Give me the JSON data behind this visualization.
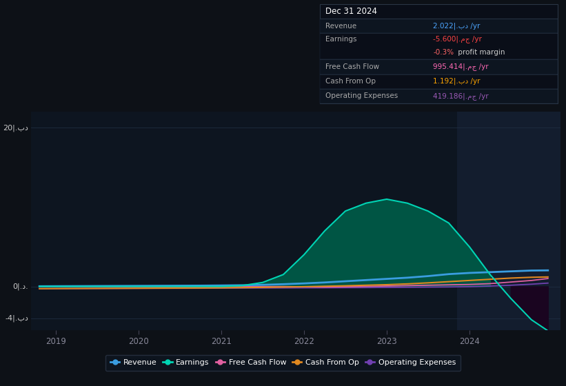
{
  "background_color": "#0d1117",
  "chart_bg_color": "#0d1520",
  "highlight_bg_color": "#131d2e",
  "grid_color": "#1e2d40",
  "title_text": "Dec 31 2024",
  "table_rows": [
    {
      "label": "Revenue",
      "value": "2.022|.بد /yr",
      "color": "#4da6ff",
      "sub": null
    },
    {
      "label": "Earnings",
      "value": "-5.600|.مج /yr",
      "color": "#ff4444",
      "sub": "-0.3% profit margin",
      "sub_color": "#ff6666"
    },
    {
      "label": "Free Cash Flow",
      "value": "995.414|.مج /yr",
      "color": "#ff69b4",
      "sub": null
    },
    {
      "label": "Cash From Op",
      "value": "1.192|.بد /yr",
      "color": "#ffa500",
      "sub": null
    },
    {
      "label": "Operating Expenses",
      "value": "419.186|.مج /yr",
      "color": "#9b59b6",
      "sub": null
    }
  ],
  "years": [
    2018.8,
    2019.0,
    2019.25,
    2019.5,
    2019.75,
    2020.0,
    2020.25,
    2020.5,
    2020.75,
    2021.0,
    2021.25,
    2021.5,
    2021.75,
    2022.0,
    2022.25,
    2022.5,
    2022.75,
    2023.0,
    2023.25,
    2023.5,
    2023.75,
    2024.0,
    2024.25,
    2024.5,
    2024.75,
    2024.95
  ],
  "revenue": [
    0.02,
    0.03,
    0.04,
    0.05,
    0.06,
    0.07,
    0.08,
    0.09,
    0.1,
    0.12,
    0.15,
    0.2,
    0.28,
    0.38,
    0.5,
    0.65,
    0.8,
    0.95,
    1.1,
    1.3,
    1.55,
    1.7,
    1.8,
    1.9,
    2.0,
    2.022
  ],
  "earnings": [
    0.0,
    0.0,
    0.0,
    0.0,
    0.0,
    0.0,
    0.0,
    0.0,
    0.0,
    0.0,
    0.1,
    0.5,
    1.5,
    4.0,
    7.0,
    9.5,
    10.5,
    11.0,
    10.5,
    9.5,
    8.0,
    5.0,
    1.5,
    -1.5,
    -4.2,
    -5.6
  ],
  "free_cash_flow": [
    -0.02,
    -0.02,
    -0.02,
    -0.02,
    -0.02,
    -0.02,
    -0.02,
    -0.02,
    -0.02,
    -0.02,
    -0.02,
    -0.02,
    -0.02,
    -0.05,
    -0.08,
    -0.05,
    0.0,
    0.05,
    0.1,
    0.15,
    0.2,
    0.25,
    0.35,
    0.55,
    0.75,
    0.995
  ],
  "cash_from_op": [
    -0.28,
    -0.27,
    -0.26,
    -0.25,
    -0.24,
    -0.23,
    -0.22,
    -0.21,
    -0.2,
    -0.18,
    -0.15,
    -0.12,
    -0.08,
    -0.04,
    0.02,
    0.08,
    0.15,
    0.22,
    0.32,
    0.45,
    0.6,
    0.75,
    0.9,
    1.05,
    1.15,
    1.192
  ],
  "op_expenses": [
    -0.3,
    -0.29,
    -0.28,
    -0.27,
    -0.26,
    -0.25,
    -0.24,
    -0.24,
    -0.23,
    -0.22,
    -0.21,
    -0.2,
    -0.19,
    -0.18,
    -0.17,
    -0.16,
    -0.15,
    -0.13,
    -0.11,
    -0.09,
    -0.07,
    -0.03,
    0.05,
    0.15,
    0.28,
    0.419
  ],
  "revenue_color": "#3a9de0",
  "earnings_color": "#00d4b4",
  "earnings_fill_pos_color": "#005544",
  "earnings_fill_neg_color": "#1a0520",
  "free_cash_flow_color": "#e060a0",
  "cash_from_op_color": "#e08820",
  "op_expenses_color": "#7040b0",
  "yticks": [
    -4,
    0,
    20
  ],
  "ylabels": [
    "-4|.بد",
    "0|.د.",
    "20|.بد"
  ],
  "xticks": [
    2019,
    2020,
    2021,
    2022,
    2023,
    2024
  ],
  "xlim_left": 2018.7,
  "xlim_right": 2025.1,
  "ylim_bottom": -5.5,
  "ylim_top": 22.0,
  "highlight_x_start": 2023.85,
  "legend_items": [
    {
      "label": "Revenue",
      "color": "#3a9de0"
    },
    {
      "label": "Earnings",
      "color": "#00d4b4"
    },
    {
      "label": "Free Cash Flow",
      "color": "#e060a0"
    },
    {
      "label": "Cash From Op",
      "color": "#e08820"
    },
    {
      "label": "Operating Expenses",
      "color": "#7040b0"
    }
  ]
}
